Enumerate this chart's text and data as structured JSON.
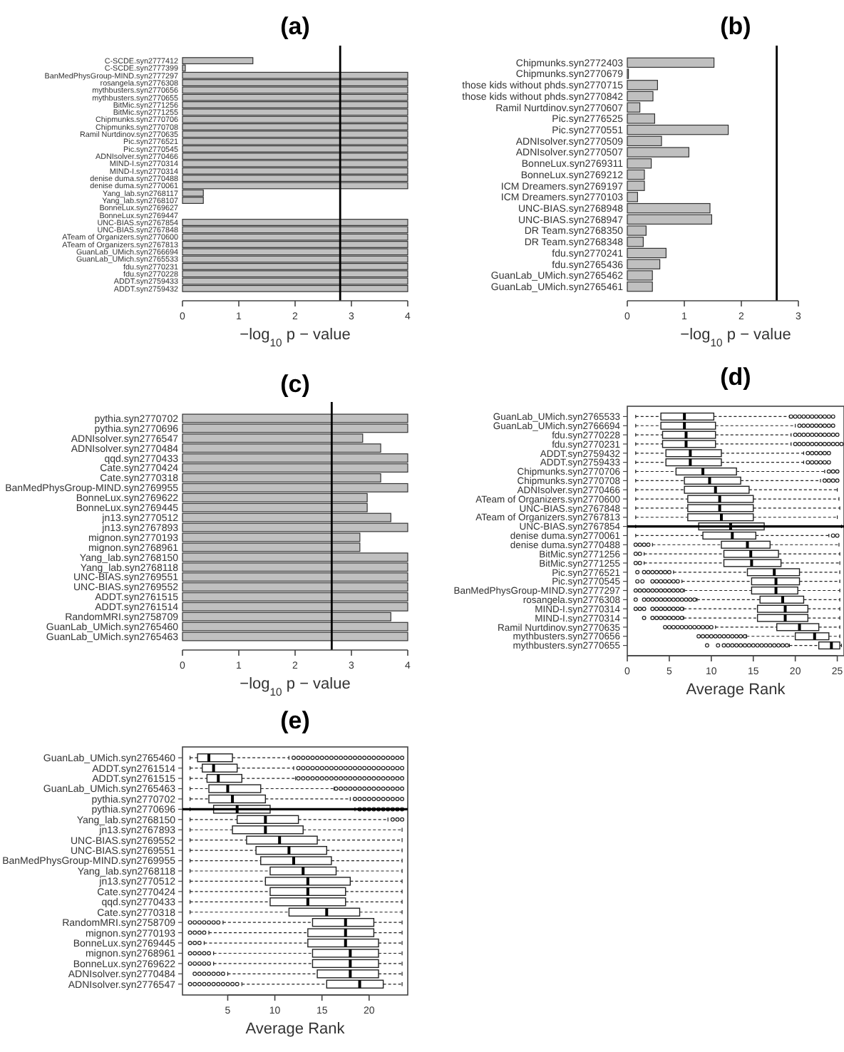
{
  "chart_data": [
    {
      "type": "bar",
      "orientation": "horizontal",
      "title": "(a)",
      "xlabel": "−log$_{10}$ p − value",
      "color": "#c0c0c0",
      "xlim": [
        0,
        4
      ],
      "xticks": [
        0,
        1,
        2,
        3,
        4
      ],
      "categories": [
        "C-SCDE.syn2777412",
        "C-SCDE.syn2777399",
        "BanMedPhysGroup-MIND.syn2777297",
        "rosangela.syn2776308",
        "mythbusters.syn2770656",
        "mythbusters.syn2770655",
        "BitMic.syn2771256",
        "BitMic.syn2771255",
        "Chipmunks.syn2770706",
        "Chipmunks.syn2770708",
        "Ramil Nurtdinov.syn2770635",
        "Pic.syn2776521",
        "Pic.syn2770545",
        "ADNIsolver.syn2770466",
        "MIND-I.syn2770314",
        "MIND-I.syn2770314",
        "denise duma.syn2770488",
        "denise duma.syn2770061",
        "Yang_lab.syn2768117",
        "Yang_lab.syn2768107",
        "BonneLux.syn2769627",
        "BonneLux.syn2769447",
        "UNC-BIAS.syn2767854",
        "UNC-BIAS.syn2767848",
        "ATeam of Organizers.syn2770600",
        "ATeam of Organizers.syn2767813",
        "GuanLab_UMich.syn2766694",
        "GuanLab_UMich.syn2765533",
        "fdu.syn2770231",
        "fdu.syn2770228",
        "ADDT.syn2759433",
        "ADDT.syn2759432"
      ],
      "values": [
        1.25,
        0.05,
        4,
        4,
        4,
        4,
        4,
        4,
        4,
        4,
        4,
        4,
        4,
        4,
        4,
        4,
        4,
        4,
        0.37,
        0.37,
        0,
        0,
        4,
        4,
        4,
        4,
        4,
        4,
        4,
        4,
        4,
        4
      ],
      "ref_lines": [
        {
          "axis": "x",
          "value": 2.8,
          "color": "#000000"
        }
      ]
    },
    {
      "type": "bar",
      "orientation": "horizontal",
      "title": "(b)",
      "xlabel": "−log$_{10}$ p − value",
      "color": "#c0c0c0",
      "xlim": [
        0,
        3.8
      ],
      "xticks": [
        0,
        1,
        2,
        3
      ],
      "categories": [
        "Chipmunks.syn2772403",
        "Chipmunks.syn2770679",
        "those kids without phds.syn2770715",
        "those kids without phds.syn2770842",
        "Ramil Nurtdinov.syn2770607",
        "Pic.syn2776525",
        "Pic.syn2770551",
        "ADNIsolver.syn2770509",
        "ADNIsolver.syn2770507",
        "BonneLux.syn2769311",
        "BonneLux.syn2769212",
        "ICM Dreamers.syn2769197",
        "ICM Dreamers.syn2770103",
        "UNC-BIAS.syn2768948",
        "UNC-BIAS.syn2768947",
        "DR Team.syn2768350",
        "DR Team.syn2768348",
        "fdu.syn2770241",
        "fdu.syn2765436",
        "GuanLab_UMich.syn2765462",
        "GuanLab_UMich.syn2765461"
      ],
      "values": [
        1.52,
        0.02,
        0.53,
        0.45,
        0.22,
        0.48,
        1.77,
        0.6,
        1.08,
        0.42,
        0.3,
        0.3,
        0.18,
        1.45,
        1.48,
        0.33,
        0.28,
        0.68,
        0.57,
        0.44,
        0.44
      ],
      "ref_lines": [
        {
          "axis": "x",
          "value": 2.62,
          "color": "#000000"
        }
      ]
    },
    {
      "type": "bar",
      "orientation": "horizontal",
      "title": "(c)",
      "xlabel": "−log$_{10}$ p − value",
      "color": "#c0c0c0",
      "xlim": [
        0,
        4
      ],
      "xticks": [
        0,
        1,
        2,
        3,
        4
      ],
      "categories": [
        "pythia.syn2770702",
        "pythia.syn2770696",
        "ADNIsolver.syn2776547",
        "ADNIsolver.syn2770484",
        "qqd.syn2770433",
        "Cate.syn2770424",
        "Cate.syn2770318",
        "BanMedPhysGroup-MIND.syn2769955",
        "BonneLux.syn2769622",
        "BonneLux.syn2769445",
        "jn13.syn2770512",
        "jn13.syn2767893",
        "mignon.syn2770193",
        "mignon.syn2768961",
        "Yang_lab.syn2768150",
        "Yang_lab.syn2768118",
        "UNC-BIAS.syn2769551",
        "UNC-BIAS.syn2769552",
        "ADDT.syn2761515",
        "ADDT.syn2761514",
        "RandomMRI.syn2758709",
        "GuanLab_UMich.syn2765460",
        "GuanLab_UMich.syn2765463"
      ],
      "values": [
        4,
        4,
        3.2,
        3.52,
        4,
        4,
        3.52,
        4,
        3.28,
        3.28,
        3.7,
        4,
        3.15,
        3.15,
        4,
        4,
        4,
        4,
        4,
        4,
        3.7,
        4,
        4
      ],
      "ref_lines": [
        {
          "axis": "x",
          "value": 2.65,
          "color": "#000000"
        }
      ]
    },
    {
      "type": "box",
      "orientation": "horizontal",
      "title": "(d)",
      "xlabel": "Average Rank",
      "xlim": [
        0,
        25.8
      ],
      "xticks": [
        0,
        5,
        10,
        15,
        20,
        25
      ],
      "categories": [
        "GuanLab_UMich.syn2765533",
        "GuanLab_UMich.syn2766694",
        "fdu.syn2770228",
        "fdu.syn2770231",
        "ADDT.syn2759432",
        "ADDT.syn2759433",
        "Chipmunks.syn2770706",
        "Chipmunks.syn2770708",
        "ADNIsolver.syn2770466",
        "ATeam of Organizers.syn2770600",
        "UNC-BIAS.syn2767848",
        "ATeam of Organizers.syn2767813",
        "UNC-BIAS.syn2767854",
        "denise duma.syn2770061",
        "denise duma.syn2770488",
        "BitMic.syn2771256",
        "BitMic.syn2771255",
        "Pic.syn2776521",
        "Pic.syn2770545",
        "BanMedPhysGroup-MIND.syn2777297",
        "rosangela.syn2776308",
        "MIND-I.syn2770314",
        "MIND-I.syn2770314",
        "Ramil Nurtdinov.syn2770635",
        "mythbusters.syn2770656",
        "mythbusters.syn2770655"
      ],
      "boxes": [
        {
          "low": 1,
          "q1": 4,
          "median": 6.8,
          "q3": 10.3,
          "high": 19.3,
          "outliers": [
            19.5,
            20,
            20.5,
            21,
            21.5,
            22,
            22.5,
            23,
            23.5,
            24,
            24.5
          ]
        },
        {
          "low": 1,
          "q1": 4,
          "median": 6.8,
          "q3": 10.5,
          "high": 20,
          "outliers": [
            20.5,
            21,
            21.5,
            22,
            22.5,
            23,
            23.5,
            24,
            24.5
          ]
        },
        {
          "low": 1,
          "q1": 4.2,
          "median": 7,
          "q3": 10.5,
          "high": 19.5,
          "outliers": [
            20,
            20.5,
            21,
            21.5,
            22,
            22.5,
            23,
            23.5,
            24,
            24.5,
            25
          ]
        },
        {
          "low": 1,
          "q1": 4.2,
          "median": 7,
          "q3": 10.5,
          "high": 19.5,
          "outliers": [
            20,
            20.5,
            21,
            21.5,
            22,
            22.5,
            23,
            23.5,
            24,
            24.5,
            25,
            25.5
          ]
        },
        {
          "low": 1,
          "q1": 4.6,
          "median": 7.5,
          "q3": 11.2,
          "high": 21,
          "outliers": [
            21.5,
            22,
            22.5,
            23,
            23.5,
            24
          ]
        },
        {
          "low": 1,
          "q1": 4.6,
          "median": 7.5,
          "q3": 11.2,
          "high": 21,
          "outliers": [
            21.5,
            22,
            22.5,
            23,
            23.5,
            24
          ]
        },
        {
          "low": 1,
          "q1": 5.8,
          "median": 9,
          "q3": 13,
          "high": 23.5,
          "outliers": [
            24,
            24.5,
            25
          ]
        },
        {
          "low": 1,
          "q1": 6.8,
          "median": 9.8,
          "q3": 13.5,
          "high": 23,
          "outliers": [
            23.5,
            24,
            24.5,
            25
          ]
        },
        {
          "low": 1,
          "q1": 6.8,
          "median": 10.5,
          "q3": 14.5,
          "high": 25
        },
        {
          "low": 1,
          "q1": 7.2,
          "median": 11,
          "q3": 15,
          "high": 25.2
        },
        {
          "low": 1,
          "q1": 7.2,
          "median": 11,
          "q3": 15,
          "high": 25.3
        },
        {
          "low": 1,
          "q1": 7.2,
          "median": 11.2,
          "q3": 15,
          "high": 25
        },
        {
          "low": 1,
          "q1": 8.5,
          "median": 12.3,
          "q3": 16.3,
          "high": 25.5
        },
        {
          "low": 1,
          "q1": 9,
          "median": 12.5,
          "q3": 15.3,
          "high": 24,
          "outliers": [
            24.5,
            25
          ]
        },
        {
          "low": 3,
          "q1": 11.2,
          "median": 14.3,
          "q3": 17,
          "high": 25.2,
          "outliers": [
            1,
            1.5,
            2,
            2.5
          ]
        },
        {
          "low": 2,
          "q1": 11.5,
          "median": 14.7,
          "q3": 18,
          "high": 25.3,
          "outliers": [
            1,
            1.5
          ]
        },
        {
          "low": 2,
          "q1": 11.5,
          "median": 14.8,
          "q3": 18.3,
          "high": 25.3,
          "outliers": [
            1,
            1.5
          ]
        },
        {
          "low": 5.5,
          "q1": 14.3,
          "median": 17.5,
          "q3": 20.5,
          "high": 25.3,
          "outliers": [
            1.2,
            2,
            2.5,
            3,
            3.5,
            4,
            4.5,
            5
          ]
        },
        {
          "low": 6.5,
          "q1": 14.8,
          "median": 17.7,
          "q3": 20.5,
          "high": 25.3,
          "outliers": [
            1.2,
            1.8,
            3,
            3.5,
            4,
            4.5,
            5,
            5.5,
            6
          ]
        },
        {
          "low": 6.8,
          "q1": 14.8,
          "median": 17.7,
          "q3": 20.3,
          "high": 25.3,
          "outliers": [
            1,
            1.5,
            2,
            2.5,
            3,
            3.5,
            4,
            4.5,
            5,
            5.5,
            6,
            6.5
          ]
        },
        {
          "low": 8.3,
          "q1": 15.8,
          "median": 18.5,
          "q3": 21,
          "high": 25.3,
          "outliers": [
            1,
            2,
            2.5,
            3,
            3.5,
            4,
            4.5,
            5,
            5.5,
            6,
            6.5,
            7,
            7.5,
            8
          ]
        },
        {
          "low": 6.7,
          "q1": 15.5,
          "median": 18.8,
          "q3": 21.5,
          "high": 25.3,
          "outliers": [
            1,
            1.5,
            2,
            3,
            3.5,
            4,
            4.5,
            5,
            5.5,
            6,
            6.5
          ]
        },
        {
          "low": 6.7,
          "q1": 15.5,
          "median": 18.8,
          "q3": 21.5,
          "high": 25.3,
          "outliers": [
            2,
            3,
            3.5,
            4,
            4.5,
            5,
            5.5,
            6,
            6.5
          ]
        },
        {
          "low": 10.5,
          "q1": 17.8,
          "median": 20.5,
          "q3": 22.8,
          "high": 25.3,
          "outliers": [
            4.5,
            5,
            5.5,
            6,
            6.5,
            7,
            7.5,
            8,
            8.5,
            9,
            9.5,
            10
          ]
        },
        {
          "low": 14.2,
          "q1": 20,
          "median": 22.3,
          "q3": 24,
          "high": 25.3,
          "outliers": [
            8.5,
            9,
            9.5,
            10,
            10.5,
            11,
            11.5,
            12,
            12.5,
            13,
            13.5,
            14
          ]
        },
        {
          "low": 19.3,
          "q1": 22.8,
          "median": 24.3,
          "q3": 25.3,
          "high": 25.5,
          "outliers": [
            9.5,
            10.8,
            11.5,
            12,
            12.5,
            13,
            13.5,
            14,
            14.5,
            15,
            15.5,
            16,
            16.5,
            17,
            17.5,
            18,
            18.5,
            19
          ]
        }
      ]
    },
    {
      "type": "box",
      "orientation": "horizontal",
      "title": "(e)",
      "xlabel": "Average Rank",
      "xlim": [
        0.2,
        24.1
      ],
      "xticks": [
        5,
        10,
        15,
        20
      ],
      "categories": [
        "GuanLab_UMich.syn2765460",
        "ADDT.syn2761514",
        "ADDT.syn2761515",
        "GuanLab_UMich.syn2765463",
        "pythia.syn2770702",
        "pythia.syn2770696",
        "Yang_lab.syn2768150",
        "jn13.syn2767893",
        "UNC-BIAS.syn2769552",
        "UNC-BIAS.syn2769551",
        "BanMedPhysGroup-MIND.syn2769955",
        "Yang_lab.syn2768118",
        "jn13.syn2770512",
        "Cate.syn2770424",
        "qqd.syn2770433",
        "Cate.syn2770318",
        "RandomMRI.syn2758709",
        "mignon.syn2770193",
        "BonneLux.syn2769445",
        "mignon.syn2768961",
        "BonneLux.syn2769622",
        "ADNIsolver.syn2770484",
        "ADNIsolver.syn2776547"
      ],
      "boxes": [
        {
          "low": 1,
          "q1": 1.8,
          "median": 3,
          "q3": 5.5,
          "high": 11.5,
          "outliers": [
            12,
            12.5,
            13,
            13.5,
            14,
            14.5,
            15,
            15.5,
            16,
            16.5,
            17,
            17.5,
            18,
            18.5,
            19,
            19.5,
            20,
            20.5,
            21,
            21.5,
            22,
            22.5,
            23,
            23.5
          ]
        },
        {
          "low": 1,
          "q1": 2.3,
          "median": 3.5,
          "q3": 6,
          "high": 12,
          "outliers": [
            12.5,
            13,
            13.5,
            14,
            14.5,
            15,
            15.5,
            16,
            16.5,
            17,
            17.5,
            18,
            18.5,
            19,
            19.5,
            20,
            20.5,
            21,
            21.5,
            22,
            22.5,
            23,
            23.5
          ]
        },
        {
          "low": 1,
          "q1": 2.8,
          "median": 4,
          "q3": 6.5,
          "high": 12.2,
          "outliers": [
            12.5,
            13,
            13.5,
            14,
            14.5,
            15,
            15.5,
            16,
            16.5,
            17,
            17.5,
            18,
            18.5,
            19,
            19.5,
            20,
            20.5,
            21,
            21.5,
            22,
            22.5,
            23,
            23.5
          ]
        },
        {
          "low": 1,
          "q1": 3,
          "median": 5,
          "q3": 8.5,
          "high": 16.3,
          "outliers": [
            16.5,
            17,
            17.5,
            18,
            18.5,
            19,
            19.5,
            20,
            20.5,
            21,
            21.5,
            22,
            22.5,
            23,
            23.5
          ]
        },
        {
          "low": 1,
          "q1": 3,
          "median": 5.5,
          "q3": 9,
          "high": 18,
          "outliers": [
            18.5,
            19,
            19.5,
            20,
            20.5,
            21,
            21.5,
            22,
            22.5,
            23,
            23.5
          ]
        },
        {
          "low": 1,
          "q1": 3.5,
          "median": 6,
          "q3": 9.5,
          "high": 18.5,
          "outliers": [
            19,
            19.5,
            20,
            20.5,
            21,
            21.5,
            22,
            22.5,
            23,
            23.5
          ]
        },
        {
          "low": 1,
          "q1": 6,
          "median": 9,
          "q3": 12.5,
          "high": 22,
          "outliers": [
            22.5,
            23,
            23.5
          ]
        },
        {
          "low": 1,
          "q1": 5.5,
          "median": 9,
          "q3": 13,
          "high": 23.5
        },
        {
          "low": 1,
          "q1": 7,
          "median": 10.5,
          "q3": 14.5,
          "high": 23.5
        },
        {
          "low": 1,
          "q1": 8,
          "median": 11.5,
          "q3": 15.5,
          "high": 23.5
        },
        {
          "low": 1,
          "q1": 8.5,
          "median": 12,
          "q3": 16,
          "high": 23.5
        },
        {
          "low": 1,
          "q1": 9.5,
          "median": 13,
          "q3": 16.5,
          "high": 23.5
        },
        {
          "low": 1,
          "q1": 9,
          "median": 13.5,
          "q3": 18,
          "high": 23.5
        },
        {
          "low": 1,
          "q1": 9.5,
          "median": 13.5,
          "q3": 17.5,
          "high": 23.5
        },
        {
          "low": 1,
          "q1": 9.5,
          "median": 13.5,
          "q3": 17.5,
          "high": 23.5
        },
        {
          "low": 1,
          "q1": 11.5,
          "median": 15.5,
          "q3": 19,
          "high": 23.5
        },
        {
          "low": 4.5,
          "q1": 14,
          "median": 17.5,
          "q3": 20.5,
          "high": 23.5,
          "outliers": [
            1,
            1.5,
            2,
            2.5,
            3,
            3.5,
            4
          ]
        },
        {
          "low": 3,
          "q1": 13.5,
          "median": 17.5,
          "q3": 20.5,
          "high": 23.5,
          "outliers": [
            1,
            1.5,
            2,
            2.5
          ]
        },
        {
          "low": 2.5,
          "q1": 13.5,
          "median": 17.5,
          "q3": 21,
          "high": 23.5,
          "outliers": [
            1,
            1.5,
            2
          ]
        },
        {
          "low": 3.5,
          "q1": 14,
          "median": 18,
          "q3": 21,
          "high": 23.5,
          "outliers": [
            1,
            1.5,
            2,
            2.5,
            3
          ]
        },
        {
          "low": 3.5,
          "q1": 14,
          "median": 18,
          "q3": 21,
          "high": 23.5,
          "outliers": [
            1,
            1.5,
            2,
            2.5,
            3
          ]
        },
        {
          "low": 5,
          "q1": 14.5,
          "median": 18,
          "q3": 21,
          "high": 23.5,
          "outliers": [
            1.5,
            2,
            2.5,
            3,
            3.5,
            4,
            4.5
          ]
        },
        {
          "low": 6.5,
          "q1": 15.5,
          "median": 19,
          "q3": 21.5,
          "high": 23.5,
          "outliers": [
            1,
            1.5,
            2,
            2.5,
            3,
            3.5,
            4,
            4.5,
            5,
            5.5,
            6
          ]
        }
      ]
    }
  ]
}
